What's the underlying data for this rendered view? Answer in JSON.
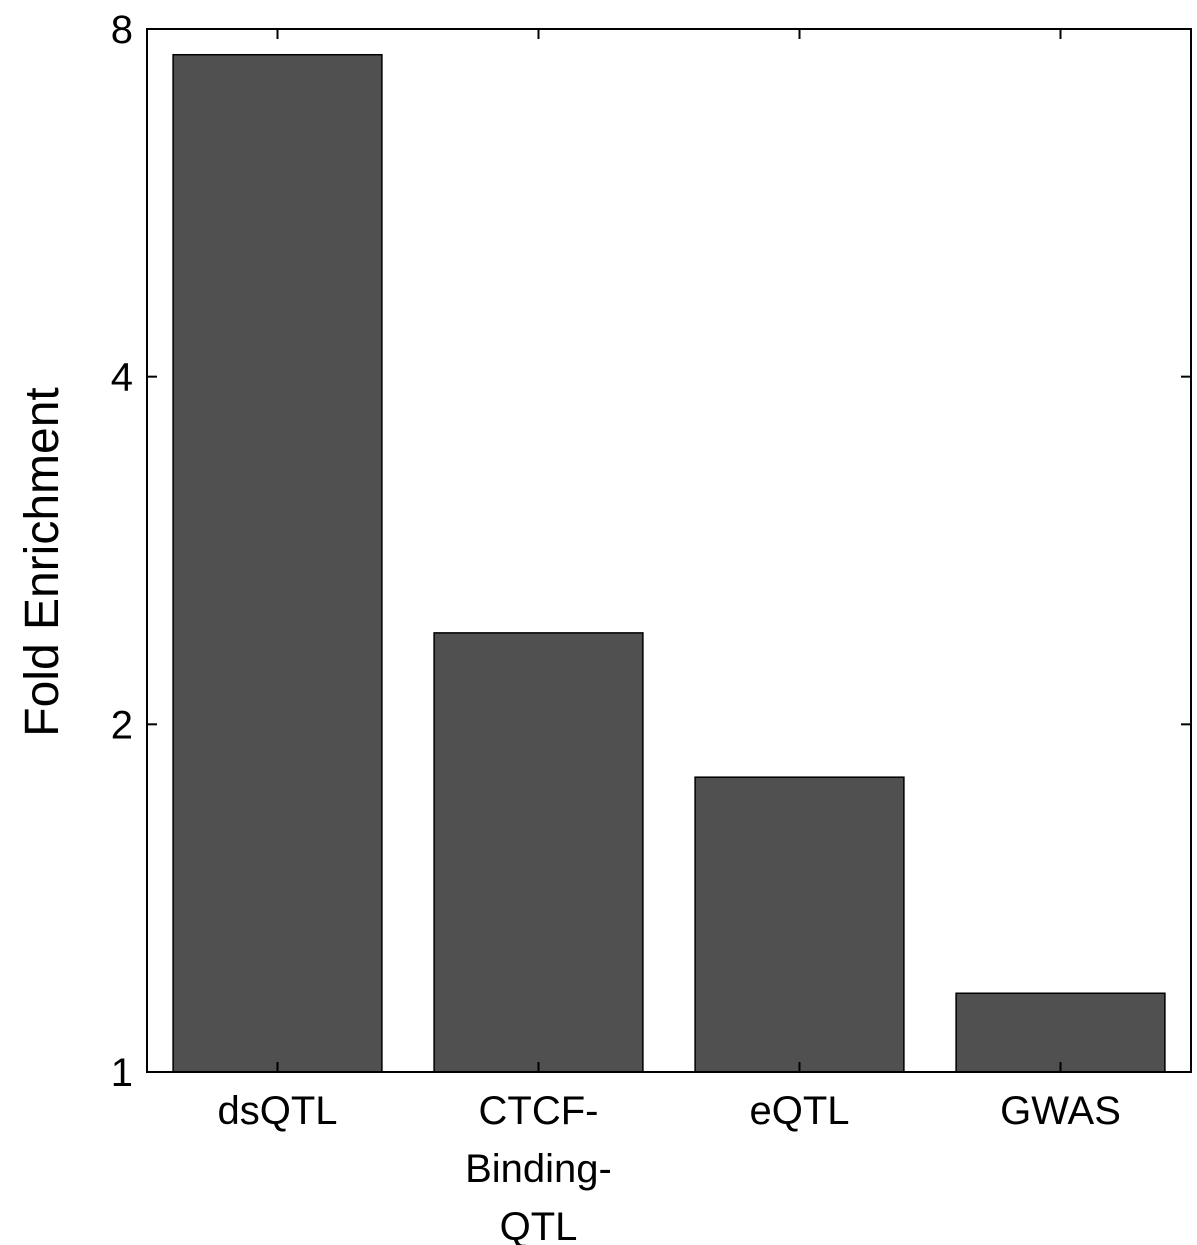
{
  "chart_data": {
    "type": "bar",
    "title": "",
    "xlabel": "",
    "ylabel": "Fold Enrichment",
    "yscale": "log2",
    "ylim": [
      1,
      8
    ],
    "yticks": [
      1,
      2,
      4,
      8
    ],
    "ytick_labels": [
      "1",
      "2",
      "4",
      "8"
    ],
    "grid": false,
    "legend": "none",
    "categories": [
      [
        "dsQTL"
      ],
      [
        "CTCF-",
        "Binding-",
        "QTL"
      ],
      [
        "eQTL"
      ],
      [
        "GWAS"
      ]
    ],
    "values": [
      7.6,
      2.4,
      1.8,
      1.17
    ],
    "colors": {
      "bar_fill": "#505050",
      "bar_edge": "#000000",
      "axis": "#000000"
    }
  }
}
